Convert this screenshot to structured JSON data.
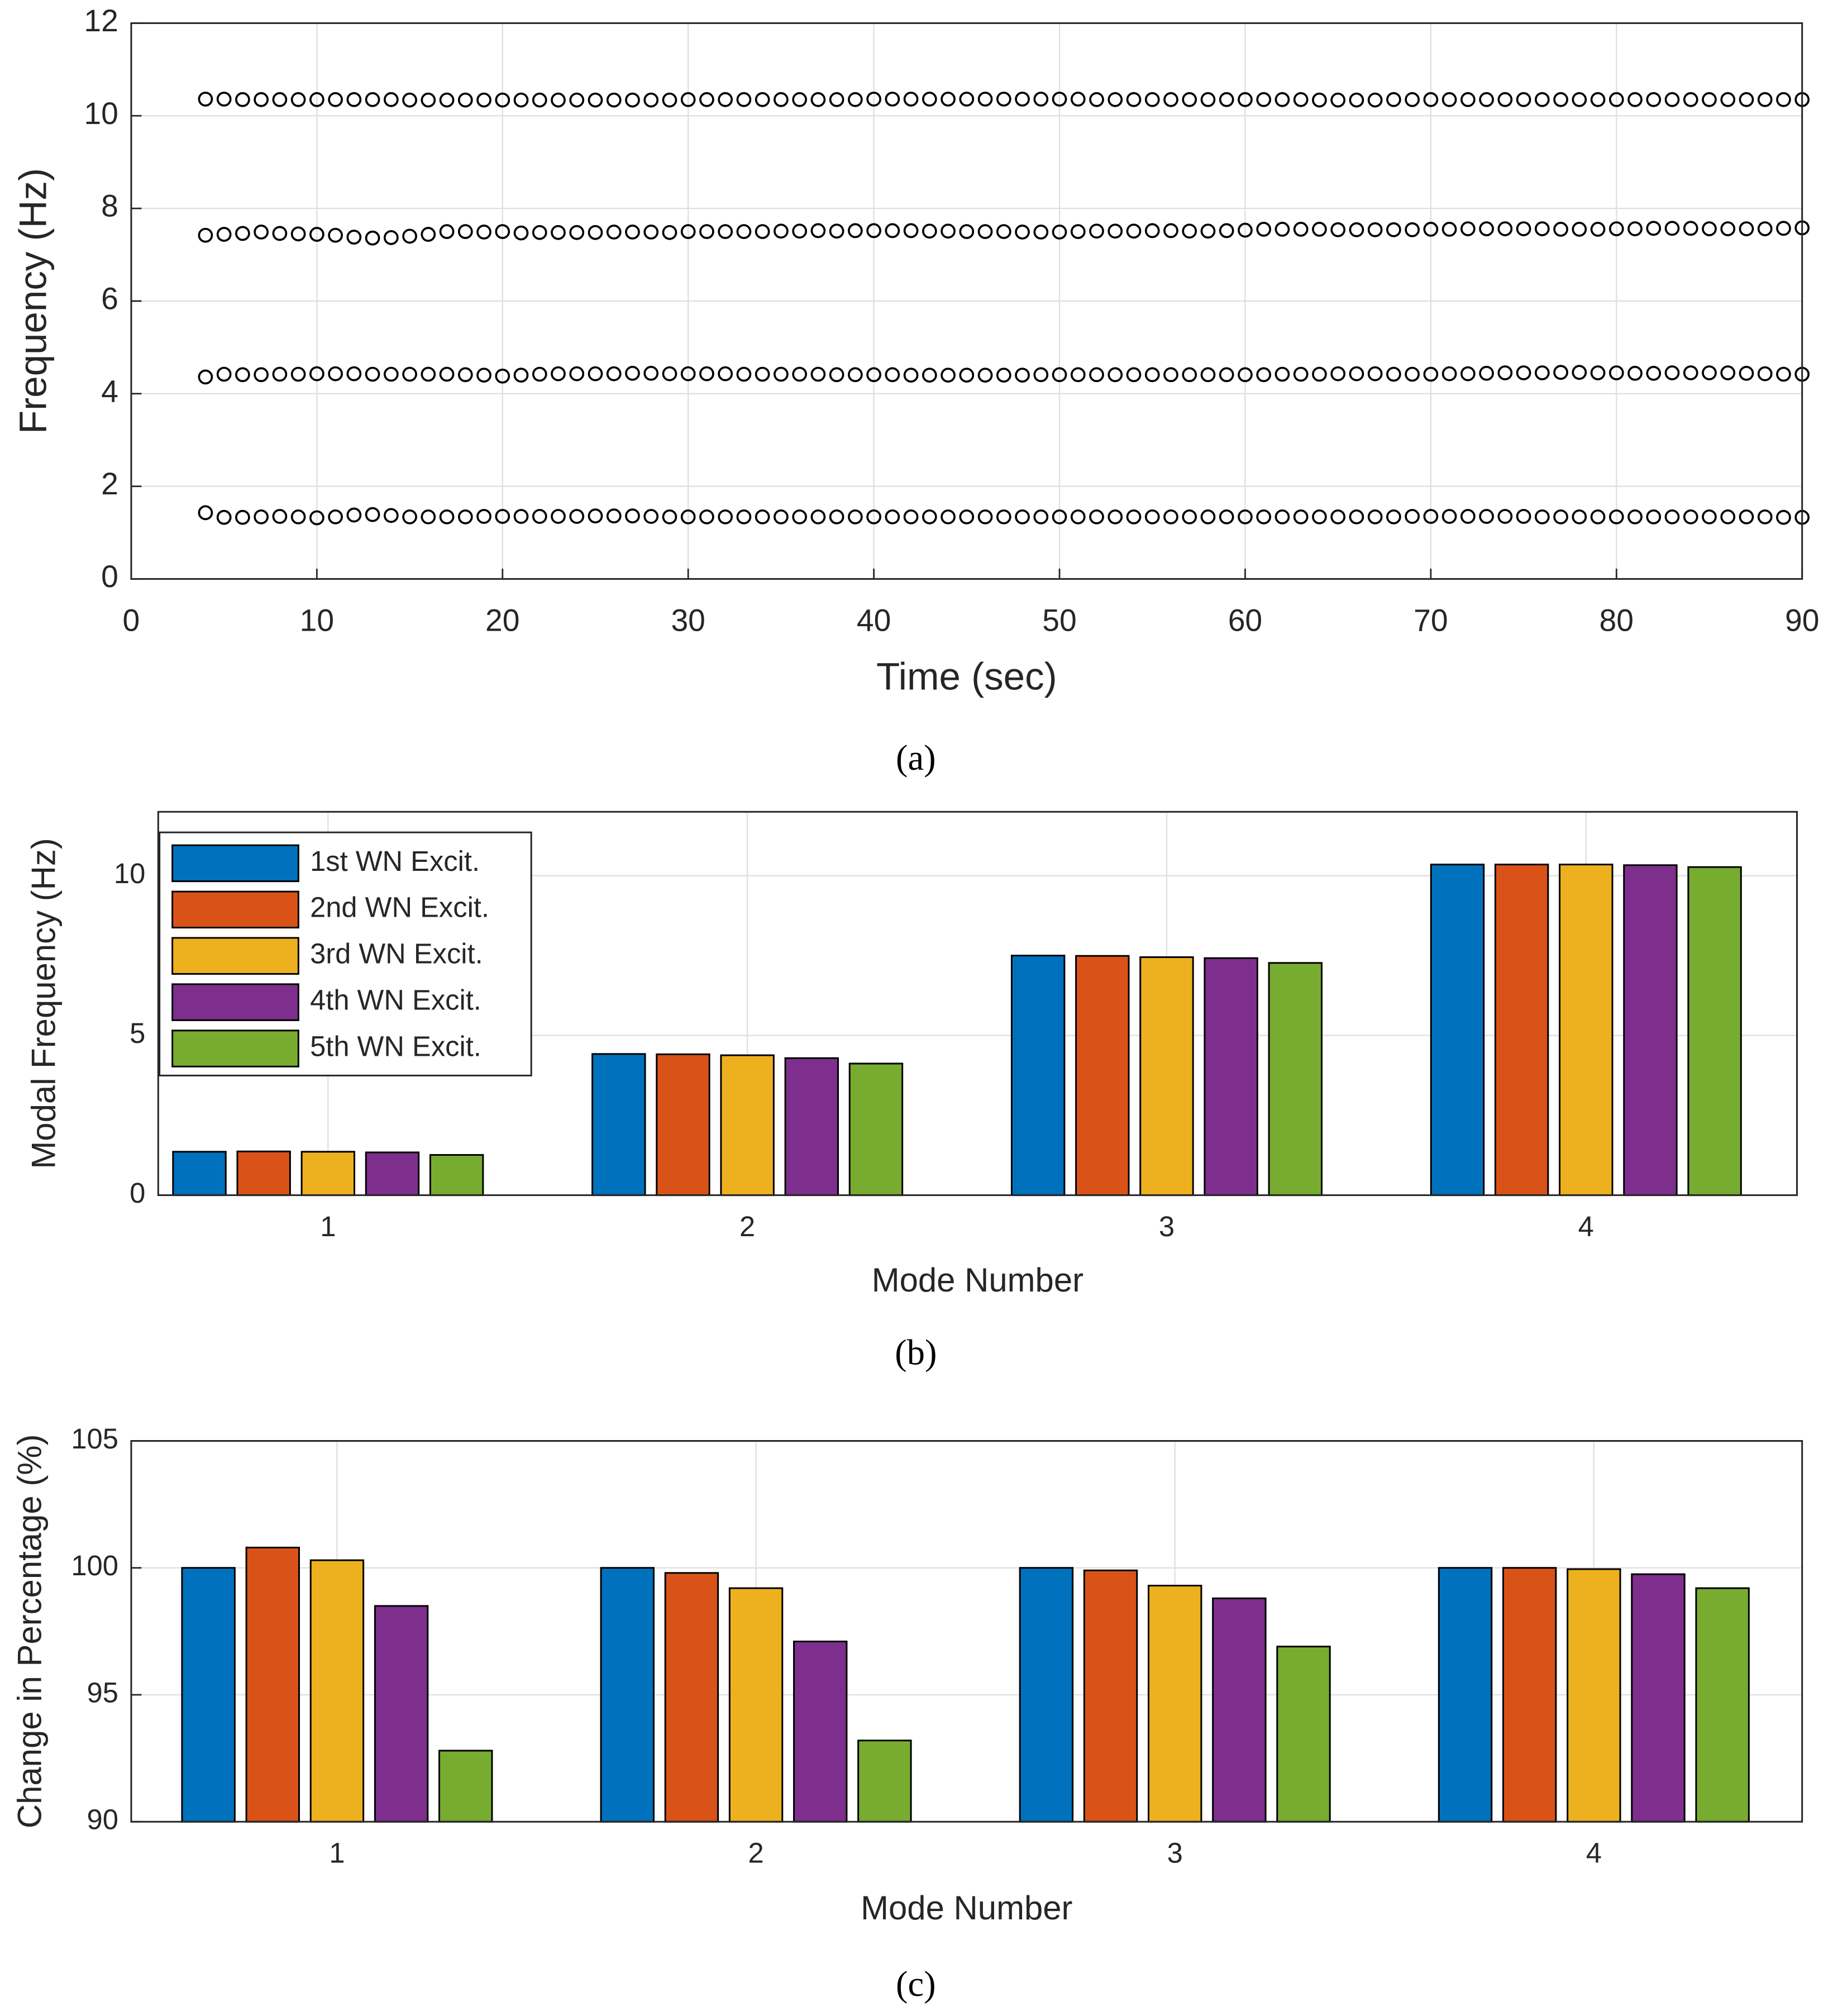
{
  "chart_data": [
    {
      "type": "scatter",
      "xlabel": "Time (sec)",
      "ylabel": "Frequency (Hz)",
      "caption": "(a)",
      "xlim": [
        0,
        90
      ],
      "xticks": [
        0,
        10,
        20,
        30,
        40,
        50,
        60,
        70,
        80,
        90
      ],
      "ylim": [
        0,
        12
      ],
      "yticks": [
        0,
        2,
        4,
        6,
        8,
        10,
        12
      ],
      "grid": true,
      "x": [
        4,
        5,
        6,
        7,
        8,
        9,
        10,
        11,
        12,
        13,
        14,
        15,
        16,
        17,
        18,
        19,
        20,
        21,
        22,
        23,
        24,
        25,
        26,
        27,
        28,
        29,
        30,
        31,
        32,
        33,
        34,
        35,
        36,
        37,
        38,
        39,
        40,
        41,
        42,
        43,
        44,
        45,
        46,
        47,
        48,
        49,
        50,
        51,
        52,
        53,
        54,
        55,
        56,
        57,
        58,
        59,
        60,
        61,
        62,
        63,
        64,
        65,
        66,
        67,
        68,
        69,
        70,
        71,
        72,
        73,
        74,
        75,
        76,
        77,
        78,
        79,
        80,
        81,
        82,
        83,
        84,
        85,
        86,
        87,
        88,
        89,
        90
      ],
      "series": [
        {
          "color": "#000000",
          "values": [
            10.36,
            10.36,
            10.35,
            10.35,
            10.35,
            10.35,
            10.35,
            10.35,
            10.35,
            10.35,
            10.35,
            10.34,
            10.34,
            10.34,
            10.34,
            10.34,
            10.34,
            10.34,
            10.34,
            10.34,
            10.34,
            10.34,
            10.34,
            10.34,
            10.34,
            10.34,
            10.35,
            10.35,
            10.35,
            10.35,
            10.35,
            10.35,
            10.35,
            10.35,
            10.35,
            10.35,
            10.36,
            10.36,
            10.36,
            10.36,
            10.36,
            10.36,
            10.36,
            10.36,
            10.36,
            10.36,
            10.36,
            10.36,
            10.35,
            10.35,
            10.35,
            10.35,
            10.35,
            10.35,
            10.35,
            10.35,
            10.35,
            10.35,
            10.35,
            10.35,
            10.34,
            10.34,
            10.34,
            10.34,
            10.35,
            10.35,
            10.35,
            10.35,
            10.35,
            10.35,
            10.35,
            10.35,
            10.35,
            10.35,
            10.35,
            10.35,
            10.35,
            10.35,
            10.35,
            10.35,
            10.35,
            10.35,
            10.35,
            10.35,
            10.35,
            10.35,
            10.35
          ]
        },
        {
          "color": "#000000",
          "values": [
            7.42,
            7.44,
            7.46,
            7.49,
            7.46,
            7.45,
            7.44,
            7.42,
            7.38,
            7.36,
            7.37,
            7.4,
            7.44,
            7.5,
            7.5,
            7.49,
            7.5,
            7.47,
            7.48,
            7.48,
            7.48,
            7.48,
            7.49,
            7.49,
            7.49,
            7.48,
            7.5,
            7.5,
            7.5,
            7.5,
            7.5,
            7.51,
            7.51,
            7.52,
            7.51,
            7.52,
            7.52,
            7.52,
            7.52,
            7.51,
            7.51,
            7.5,
            7.5,
            7.5,
            7.49,
            7.49,
            7.49,
            7.5,
            7.51,
            7.51,
            7.51,
            7.52,
            7.52,
            7.51,
            7.51,
            7.52,
            7.53,
            7.55,
            7.55,
            7.55,
            7.55,
            7.54,
            7.54,
            7.54,
            7.54,
            7.54,
            7.55,
            7.55,
            7.56,
            7.56,
            7.56,
            7.56,
            7.56,
            7.55,
            7.55,
            7.55,
            7.56,
            7.56,
            7.57,
            7.57,
            7.57,
            7.56,
            7.56,
            7.56,
            7.56,
            7.57,
            7.58
          ]
        },
        {
          "color": "#000000",
          "values": [
            4.36,
            4.42,
            4.41,
            4.41,
            4.42,
            4.42,
            4.43,
            4.43,
            4.43,
            4.42,
            4.42,
            4.42,
            4.42,
            4.42,
            4.41,
            4.4,
            4.38,
            4.4,
            4.42,
            4.43,
            4.43,
            4.43,
            4.43,
            4.44,
            4.44,
            4.43,
            4.43,
            4.43,
            4.43,
            4.42,
            4.42,
            4.42,
            4.42,
            4.42,
            4.41,
            4.41,
            4.41,
            4.41,
            4.4,
            4.4,
            4.4,
            4.4,
            4.4,
            4.4,
            4.4,
            4.41,
            4.41,
            4.41,
            4.41,
            4.41,
            4.41,
            4.41,
            4.41,
            4.41,
            4.41,
            4.41,
            4.41,
            4.41,
            4.42,
            4.42,
            4.42,
            4.43,
            4.43,
            4.43,
            4.42,
            4.42,
            4.42,
            4.43,
            4.43,
            4.44,
            4.45,
            4.45,
            4.45,
            4.46,
            4.46,
            4.45,
            4.45,
            4.44,
            4.44,
            4.45,
            4.45,
            4.45,
            4.45,
            4.44,
            4.43,
            4.42,
            4.42
          ]
        },
        {
          "color": "#000000",
          "values": [
            1.43,
            1.33,
            1.33,
            1.34,
            1.35,
            1.34,
            1.32,
            1.34,
            1.38,
            1.39,
            1.37,
            1.34,
            1.34,
            1.34,
            1.34,
            1.35,
            1.35,
            1.35,
            1.35,
            1.35,
            1.35,
            1.36,
            1.36,
            1.36,
            1.35,
            1.34,
            1.34,
            1.34,
            1.34,
            1.34,
            1.34,
            1.34,
            1.34,
            1.34,
            1.34,
            1.34,
            1.34,
            1.34,
            1.34,
            1.34,
            1.34,
            1.34,
            1.34,
            1.34,
            1.34,
            1.34,
            1.34,
            1.34,
            1.34,
            1.34,
            1.34,
            1.34,
            1.34,
            1.34,
            1.34,
            1.34,
            1.34,
            1.34,
            1.34,
            1.34,
            1.34,
            1.34,
            1.34,
            1.34,
            1.34,
            1.35,
            1.35,
            1.35,
            1.35,
            1.35,
            1.35,
            1.35,
            1.34,
            1.34,
            1.34,
            1.34,
            1.34,
            1.34,
            1.34,
            1.34,
            1.34,
            1.34,
            1.34,
            1.34,
            1.34,
            1.33,
            1.33
          ]
        }
      ]
    },
    {
      "type": "bar",
      "xlabel": "Mode Number",
      "ylabel": "Modal Frequency (Hz)",
      "caption": "(b)",
      "categories": [
        "1",
        "2",
        "3",
        "4"
      ],
      "ylim": [
        0,
        12
      ],
      "yticks": [
        0,
        5,
        10
      ],
      "grid": true,
      "legend": "northwest",
      "series": [
        {
          "name": "1st WN Excit.",
          "color": "#0072bd",
          "values": [
            1.36,
            4.42,
            7.5,
            10.35
          ]
        },
        {
          "name": "2nd WN Excit.",
          "color": "#d95319",
          "values": [
            1.37,
            4.41,
            7.49,
            10.35
          ]
        },
        {
          "name": "3rd WN Excit.",
          "color": "#edb120",
          "values": [
            1.36,
            4.38,
            7.45,
            10.35
          ]
        },
        {
          "name": "4th WN Excit.",
          "color": "#7e2f8e",
          "values": [
            1.34,
            4.29,
            7.42,
            10.33
          ]
        },
        {
          "name": "5th WN Excit.",
          "color": "#77ac30",
          "values": [
            1.26,
            4.12,
            7.27,
            10.27
          ]
        }
      ]
    },
    {
      "type": "bar",
      "xlabel": "Mode Number",
      "ylabel": "Change in Percentage (%)",
      "caption": "(c)",
      "categories": [
        "1",
        "2",
        "3",
        "4"
      ],
      "ylim": [
        90,
        105
      ],
      "yticks": [
        90,
        95,
        100,
        105
      ],
      "grid": true,
      "series": [
        {
          "color": "#0072bd",
          "values": [
            100,
            100,
            100,
            100
          ]
        },
        {
          "color": "#d95319",
          "values": [
            100.8,
            99.8,
            99.9,
            100
          ]
        },
        {
          "color": "#edb120",
          "values": [
            100.3,
            99.2,
            99.3,
            99.95
          ]
        },
        {
          "color": "#7e2f8e",
          "values": [
            98.5,
            97.1,
            98.8,
            99.75
          ]
        },
        {
          "color": "#77ac30",
          "values": [
            92.8,
            93.2,
            96.9,
            99.2
          ]
        }
      ]
    }
  ]
}
